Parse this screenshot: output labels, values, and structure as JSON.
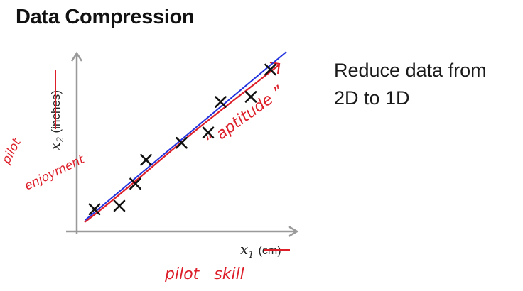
{
  "title": "Data Compression",
  "side_text": {
    "line1": "Reduce data from",
    "line2": "2D to 1D"
  },
  "axes": {
    "y_var": "x",
    "y_sub": "2",
    "y_unit": "(inches)",
    "x_var": "x",
    "x_sub": "1",
    "x_unit": "(cm)"
  },
  "handwriting": {
    "y_note_line1": "pilot",
    "y_note_line2": "enjoyment",
    "x_note": "pilot   skill",
    "line_note": "“ aptitude ”"
  },
  "colors": {
    "fit_line": "#2233dd",
    "annotation": "#dd1f2a",
    "axis": "#9a9a9a",
    "marker": "#111111"
  },
  "points": [
    {
      "x": 1.0,
      "y": 1.3
    },
    {
      "x": 2.4,
      "y": 1.5
    },
    {
      "x": 3.3,
      "y": 2.8
    },
    {
      "x": 3.9,
      "y": 4.2
    },
    {
      "x": 5.9,
      "y": 5.2
    },
    {
      "x": 7.4,
      "y": 5.8
    },
    {
      "x": 8.1,
      "y": 7.6
    },
    {
      "x": 9.8,
      "y": 7.9
    },
    {
      "x": 10.9,
      "y": 9.5
    }
  ]
}
